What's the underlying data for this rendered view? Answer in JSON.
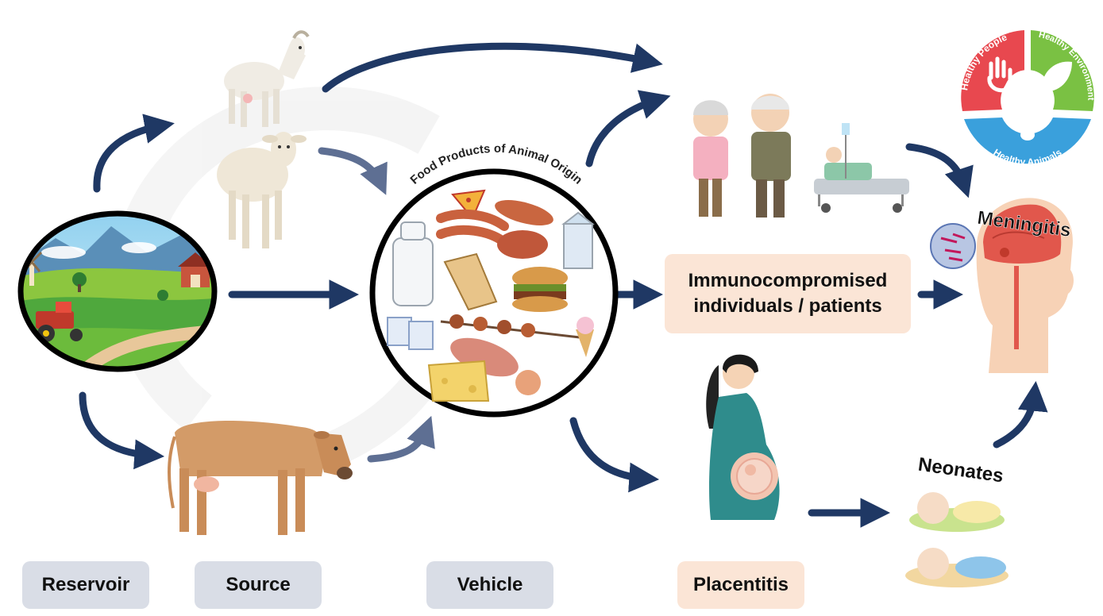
{
  "labels": {
    "reservoir": "Reservoir",
    "source": "Source",
    "vehicle": "Vehicle",
    "placentitis": "Placentitis",
    "immuno_line1": "Immunocompromised",
    "immuno_line2": "individuals / patients",
    "meningitis": "Meningitis",
    "neonates": "Neonates",
    "food_products": "Food Products of Animal Origin"
  },
  "one_health": {
    "people": "Healthy People",
    "environment": "Healthy Environment",
    "animals": "Healthy Animals"
  },
  "colors": {
    "arrow": "#1f3864",
    "grey_box": "#d9dde6",
    "peach_box": "#fbe5d6",
    "people_red": "#e8484f",
    "env_green": "#7ac143",
    "animals_blue": "#3aa0dc"
  }
}
